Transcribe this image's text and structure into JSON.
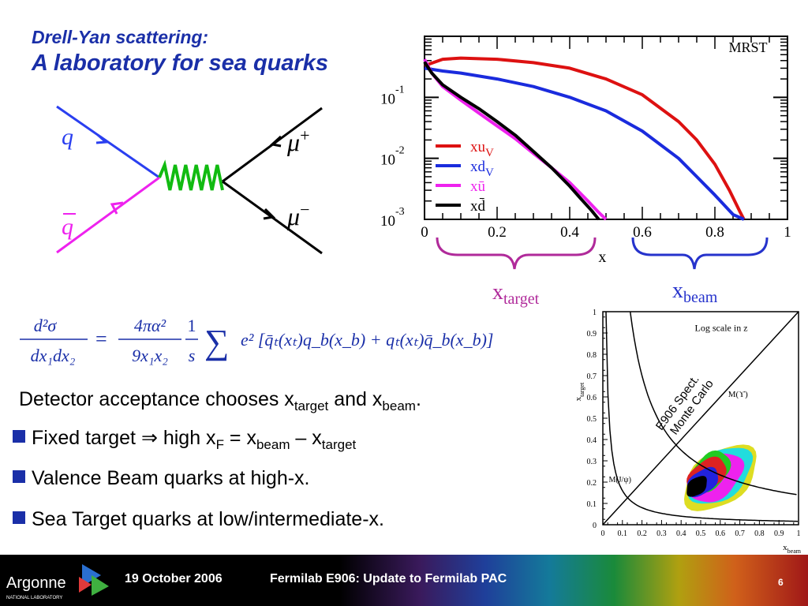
{
  "slide": {
    "title_line1": "Drell-Yan scattering:",
    "title_line2": "A laboratory for sea quarks"
  },
  "feynman": {
    "label_q": "q",
    "label_qbar": "q",
    "label_mu_plus_base": "μ",
    "label_mu_plus_sign": "+",
    "label_mu_minus_base": "μ",
    "label_mu_minus_sign": "−"
  },
  "formula": {
    "lhs_num": "d²σ",
    "lhs_den": "dx₁dx₂",
    "eq": "=",
    "frac1_num": "4πα²",
    "frac1_den": "9x₁x₂",
    "frac2_num": "1",
    "frac2_den": "s",
    "sum": "∑",
    "rest": "e² [q̄ₜ(xₜ)q_b(x_b) + qₜ(xₜ)q̄_b(x_b)]"
  },
  "text": {
    "accept_main": "Detector acceptance chooses x",
    "accept_sub1": "target",
    "accept_and": " and x",
    "accept_sub2": "beam",
    "accept_end": ".",
    "b1_a": "Fixed target ⇒ high x",
    "b1_sub_F": "F",
    "b1_b": " = x",
    "b1_sub_beam": "beam",
    "b1_c": " – x",
    "b1_sub_target": "target",
    "b2": "Valence Beam quarks at high-x.",
    "b3": "Sea Target quarks at low/intermediate-x."
  },
  "brackets": {
    "target_base": "x",
    "target_sub": "target",
    "beam_base": "x",
    "beam_sub": "beam",
    "target_color": "#b02a9a",
    "beam_color": "#2633cc"
  },
  "chart_data": [
    {
      "type": "line",
      "title": "MRST",
      "xlabel": "x",
      "xlim": [
        0,
        1
      ],
      "ylim": [
        0.001,
        1
      ],
      "yscale": "log",
      "x_ticks": [
        "0",
        "0.2",
        "0.4",
        "0.6",
        "0.8",
        "1"
      ],
      "y_ticks": [
        {
          "base": "10",
          "exp": "-1",
          "value": 0.1
        },
        {
          "base": "10",
          "exp": "-2",
          "value": 0.01
        },
        {
          "base": "10",
          "exp": "-3",
          "value": 0.001
        }
      ],
      "legend_position": "middle-left",
      "series": [
        {
          "name": "xu",
          "sub": "V",
          "color": "#dd1111",
          "x": [
            0.0,
            0.05,
            0.1,
            0.2,
            0.3,
            0.4,
            0.5,
            0.6,
            0.7,
            0.75,
            0.8,
            0.84,
            0.87,
            0.88
          ],
          "y": [
            0.33,
            0.42,
            0.44,
            0.42,
            0.37,
            0.3,
            0.2,
            0.11,
            0.04,
            0.02,
            0.008,
            0.003,
            0.0013,
            0.001
          ]
        },
        {
          "name": "xd",
          "sub": "V",
          "color": "#1a2bdd",
          "x": [
            0.0,
            0.05,
            0.1,
            0.2,
            0.3,
            0.4,
            0.5,
            0.6,
            0.7,
            0.75,
            0.8,
            0.85,
            0.88
          ],
          "y": [
            0.3,
            0.27,
            0.25,
            0.2,
            0.15,
            0.1,
            0.06,
            0.028,
            0.01,
            0.005,
            0.0025,
            0.0012,
            0.001
          ]
        },
        {
          "name": "xū",
          "sub": "",
          "color": "#ee22ee",
          "x": [
            0.0,
            0.02,
            0.05,
            0.1,
            0.15,
            0.2,
            0.25,
            0.3,
            0.35,
            0.4,
            0.45,
            0.48,
            0.5
          ],
          "y": [
            0.42,
            0.25,
            0.15,
            0.09,
            0.055,
            0.034,
            0.021,
            0.012,
            0.007,
            0.004,
            0.002,
            0.0013,
            0.001
          ]
        },
        {
          "name": "xd̄",
          "sub": "",
          "color": "#000000",
          "x": [
            0.0,
            0.02,
            0.05,
            0.1,
            0.15,
            0.2,
            0.25,
            0.3,
            0.35,
            0.4,
            0.43,
            0.46,
            0.48
          ],
          "y": [
            0.38,
            0.25,
            0.16,
            0.1,
            0.065,
            0.04,
            0.024,
            0.013,
            0.007,
            0.0035,
            0.0022,
            0.0014,
            0.001
          ]
        }
      ]
    },
    {
      "type": "heatmap",
      "title": "Log scale in z",
      "xlabel_base": "x",
      "xlabel_sub": "beam",
      "ylabel_base": "x",
      "ylabel_sub": "target",
      "xlim": [
        0,
        1
      ],
      "ylim": [
        0,
        1
      ],
      "x_ticks": [
        "0",
        "0.1",
        "0.2",
        "0.3",
        "0.4",
        "0.5",
        "0.6",
        "0.7",
        "0.8",
        "0.9",
        "1"
      ],
      "y_ticks": [
        "0",
        "0.1",
        "0.2",
        "0.3",
        "0.4",
        "0.5",
        "0.6",
        "0.7",
        "0.8",
        "0.9",
        "1"
      ],
      "annotations": {
        "mc_line1": "E906 Spect.",
        "mc_line2": "Monte Carlo",
        "upsilon": "M(ϒ)",
        "jpsi": "M(J/ψ)"
      },
      "acceptance_levels": [
        {
          "color": "#dddd22",
          "center": [
            0.6,
            0.22
          ],
          "rx": 0.21,
          "ry": 0.125
        },
        {
          "color": "#22dddd",
          "center": [
            0.6,
            0.23
          ],
          "rx": 0.18,
          "ry": 0.11
        },
        {
          "color": "#ee22ee",
          "center": [
            0.58,
            0.22
          ],
          "rx": 0.15,
          "ry": 0.095
        },
        {
          "color": "#22cc22",
          "center": [
            0.55,
            0.25
          ],
          "rx": 0.11,
          "ry": 0.08
        },
        {
          "color": "#dd2222",
          "center": [
            0.53,
            0.23
          ],
          "rx": 0.11,
          "ry": 0.07
        },
        {
          "color": "#2222dd",
          "center": [
            0.51,
            0.2
          ],
          "rx": 0.09,
          "ry": 0.055
        },
        {
          "color": "#000000",
          "center": [
            0.48,
            0.18
          ],
          "rx": 0.06,
          "ry": 0.04
        }
      ]
    }
  ],
  "footer": {
    "logo_text": "Argonne",
    "logo_sub": "NATIONAL LABORATORY",
    "date": "19 October 2006",
    "title": "Fermilab E906:  Update to Fermilab PAC",
    "page": "6"
  }
}
